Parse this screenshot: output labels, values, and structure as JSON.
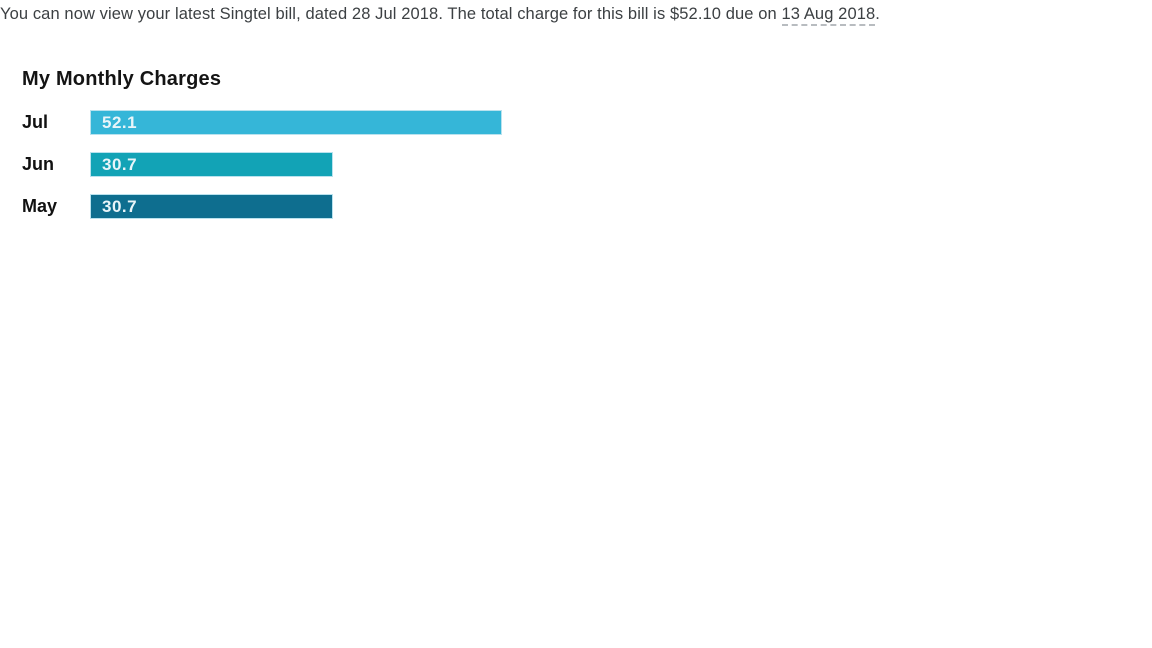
{
  "message": {
    "before": "You can now view your latest Singtel bill, dated 28 Jul 2018. The total charge for this bill is $52.10 due on ",
    "due_date": "13 Aug 2018",
    "after": "."
  },
  "chart_data": {
    "type": "bar",
    "orientation": "horizontal",
    "title": "My Monthly Charges",
    "categories": [
      "Jul",
      "Jun",
      "May"
    ],
    "values": [
      52.1,
      30.7,
      30.7
    ],
    "bar_colors": [
      "#35b6d8",
      "#12a3b6",
      "#0e6e8f"
    ],
    "value_label_color": "#e9f5f9",
    "xlim": [
      0,
      52.1
    ],
    "grid": false,
    "legend": false,
    "axis_ticks": false
  }
}
